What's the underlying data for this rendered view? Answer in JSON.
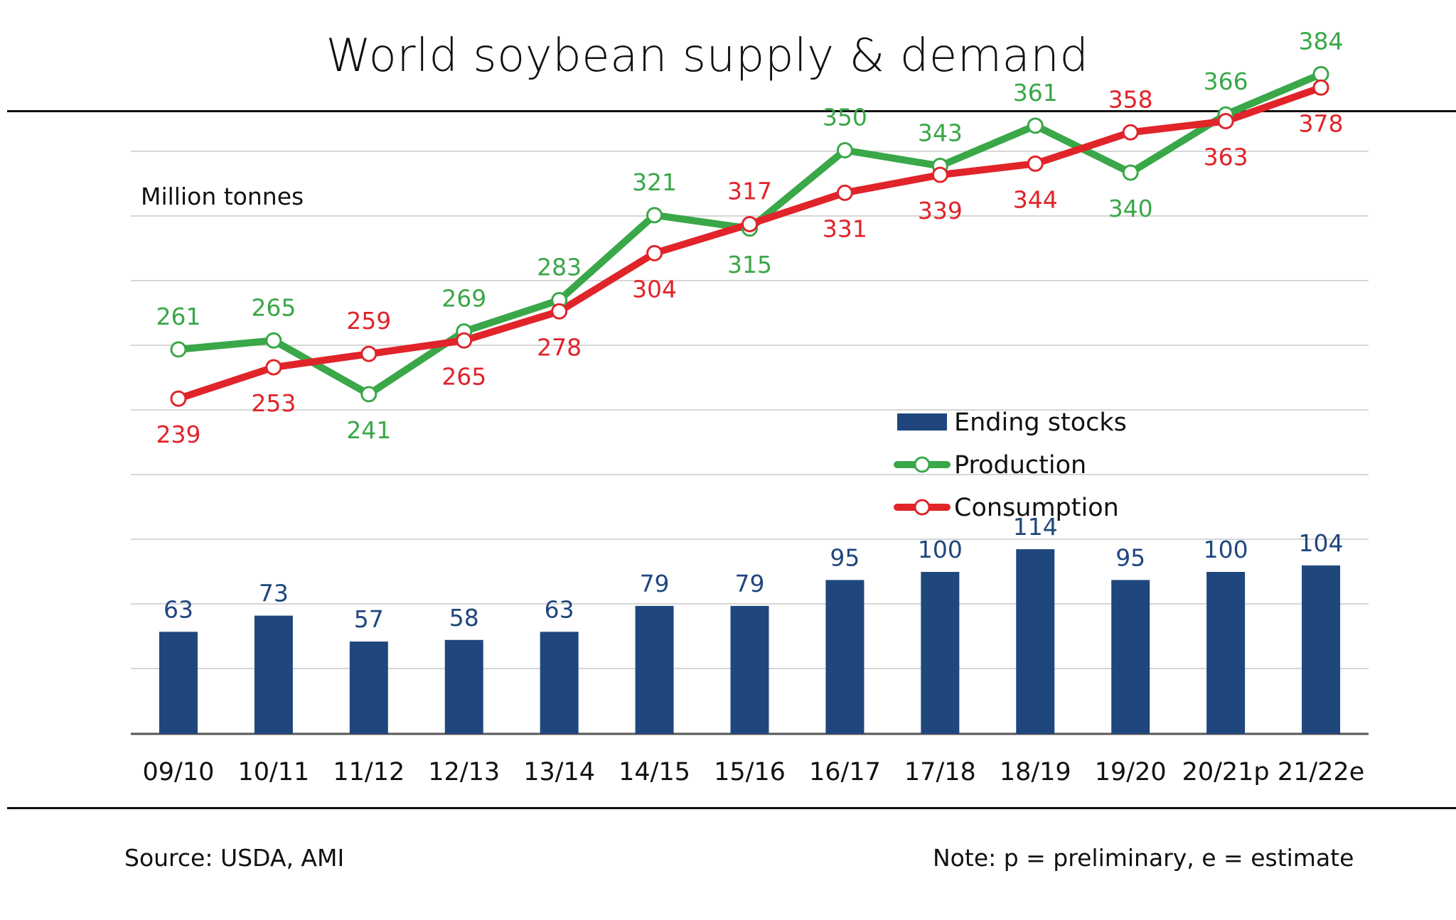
{
  "title": "World soybean supply & demand",
  "footer": {
    "source": "Source: USDA, AMI",
    "note": "Note: p = preliminary, e = estimate"
  },
  "colors": {
    "ending_stocks": "#1f477d",
    "production": "#3aa748",
    "consumption": "#e0242a",
    "production_label": "#3aa748",
    "consumption_label": "#e0242a",
    "stocks_label": "#1f477d",
    "grid": "#d6d6d6",
    "axis": "#555555"
  },
  "chart_data": {
    "type": "bar+line",
    "unit_label": "Million tonnes",
    "categories": [
      "09/10",
      "10/11",
      "11/12",
      "12/13",
      "13/14",
      "14/15",
      "15/16",
      "16/17",
      "17/18",
      "18/19",
      "19/20",
      "20/21p",
      "21/22e"
    ],
    "series": [
      {
        "name": "Ending stocks",
        "type": "bar",
        "values": [
          63,
          73,
          57,
          58,
          63,
          79,
          79,
          95,
          100,
          114,
          95,
          100,
          104
        ]
      },
      {
        "name": "Production",
        "type": "line",
        "values": [
          261,
          265,
          241,
          269,
          283,
          321,
          315,
          350,
          343,
          361,
          340,
          366,
          384
        ]
      },
      {
        "name": "Consumption",
        "type": "line",
        "values": [
          239,
          253,
          259,
          265,
          278,
          304,
          317,
          331,
          339,
          344,
          358,
          363,
          378
        ]
      }
    ],
    "legend": [
      "Ending stocks",
      "Production",
      "Consumption"
    ],
    "legend_position": "middle-right",
    "grid": true
  }
}
